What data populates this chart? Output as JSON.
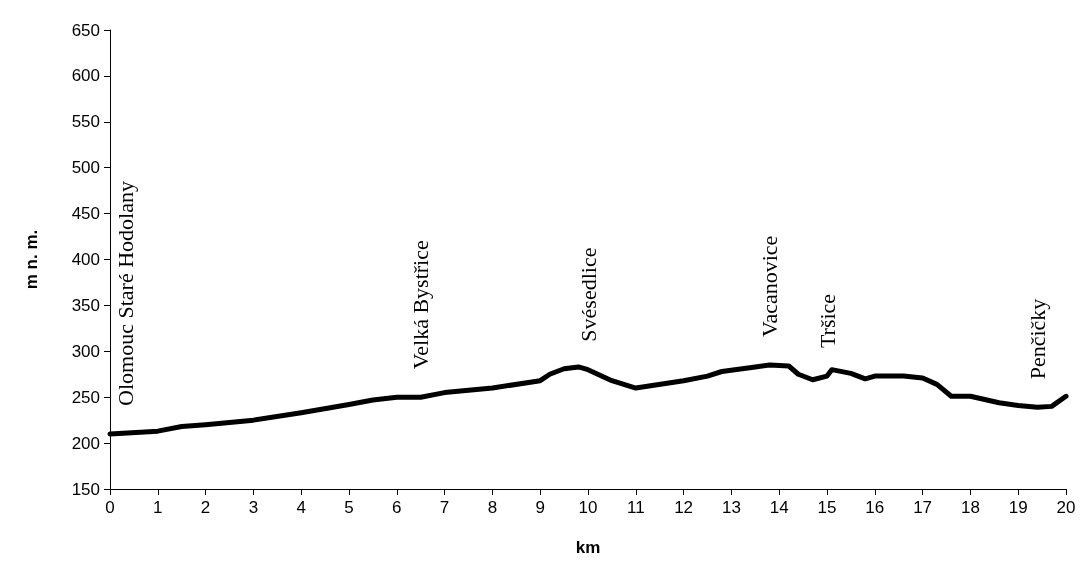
{
  "chart_data": {
    "type": "line",
    "xlabel": "km",
    "ylabel": "m n. m.",
    "x": [
      0,
      1,
      1.5,
      2,
      3,
      4,
      5,
      5.5,
      6,
      6.5,
      7,
      8,
      9,
      9.2,
      9.5,
      9.8,
      10,
      10.5,
      11,
      12,
      12.5,
      12.8,
      13.5,
      13.8,
      14.2,
      14.4,
      14.7,
      15,
      15.1,
      15.5,
      15.8,
      16,
      16.6,
      17,
      17.3,
      17.6,
      18,
      18.6,
      19,
      19.4,
      19.7,
      20
    ],
    "series": [
      {
        "color": "#000000",
        "values": [
          210,
          213,
          218,
          220,
          225,
          233,
          242,
          247,
          250,
          250,
          255,
          260,
          268,
          275,
          281,
          283,
          280,
          268,
          260,
          268,
          273,
          278,
          283,
          285,
          284,
          275,
          269,
          273,
          280,
          276,
          270,
          273,
          273,
          271,
          264,
          251,
          251,
          244,
          241,
          239,
          240,
          251
        ]
      }
    ],
    "xlim": [
      0,
      20
    ],
    "xticks": [
      0,
      1,
      2,
      3,
      4,
      5,
      6,
      7,
      8,
      9,
      10,
      11,
      12,
      13,
      14,
      15,
      16,
      17,
      18,
      19,
      20
    ],
    "ylim": [
      150,
      650
    ],
    "yticks": [
      150,
      200,
      250,
      300,
      350,
      400,
      450,
      500,
      550,
      600,
      650
    ],
    "grid": false,
    "marker": "none",
    "line_style": "solid",
    "annotations": [
      {
        "text": "Olomouc Staré Hodolany",
        "x": 0,
        "y": 210
      },
      {
        "text": "Velká Bystřice",
        "x": 6.5,
        "y": 250
      },
      {
        "text": "Svésedlice",
        "x": 10,
        "y": 280
      },
      {
        "text": "Vacanovice",
        "x": 13.8,
        "y": 285
      },
      {
        "text": "Tršice",
        "x": 15,
        "y": 273
      },
      {
        "text": "Penčičky",
        "x": 19.4,
        "y": 239
      }
    ]
  }
}
